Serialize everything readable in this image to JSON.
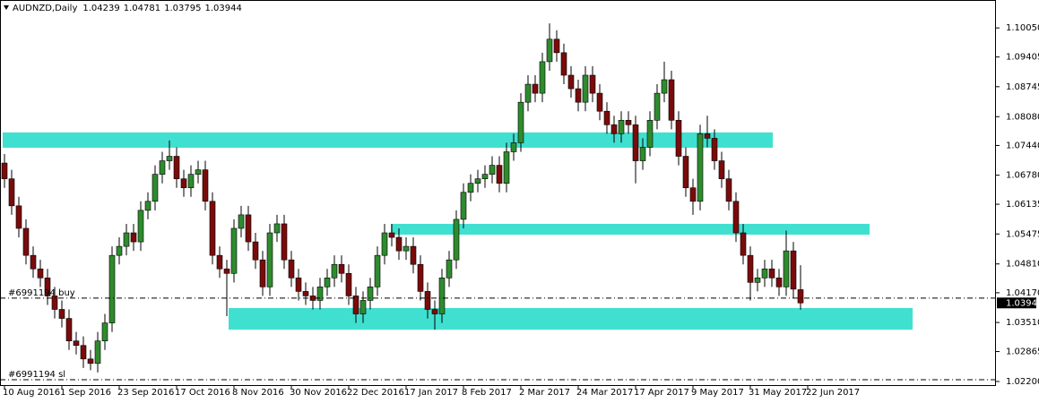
{
  "chart_data": {
    "type": "candlestick",
    "title": "AUDNZD,Daily",
    "up_color": "#2e8b2e",
    "down_color": "#7a0b0b",
    "wick_color": "#000000",
    "open": [
      1.0705,
      1.067,
      1.061,
      1.056,
      1.05,
      1.047,
      1.045,
      1.041,
      1.038,
      1.036,
      1.031,
      1.03,
      1.027,
      1.026,
      1.031,
      1.035,
      1.05,
      1.052,
      1.055,
      1.053,
      1.06,
      1.062,
      1.068,
      1.071,
      1.072,
      1.067,
      1.065,
      1.068,
      1.069,
      1.062,
      1.05,
      1.047,
      1.046,
      1.056,
      1.059,
      1.053,
      1.049,
      1.043,
      1.055,
      1.057,
      1.049,
      1.045,
      1.042,
      1.041,
      1.04,
      1.043,
      1.045,
      1.048,
      1.046,
      1.041,
      1.037,
      1.04,
      1.043,
      1.05,
      1.055,
      1.054,
      1.051,
      1.052,
      1.048,
      1.042,
      1.038,
      1.037,
      1.045,
      1.049,
      1.058,
      1.064,
      1.066,
      1.067,
      1.068,
      1.07,
      1.066,
      1.073,
      1.075,
      1.084,
      1.088,
      1.086,
      1.093,
      1.098,
      1.095,
      1.09,
      1.087,
      1.084,
      1.09,
      1.086,
      1.082,
      1.079,
      1.077,
      1.08,
      1.079,
      1.071,
      1.074,
      1.08,
      1.086,
      1.089,
      1.08,
      1.072,
      1.065,
      1.062,
      1.077,
      1.076,
      1.071,
      1.067,
      1.062,
      1.055,
      1.05,
      1.044,
      1.045,
      1.047,
      1.045,
      1.043,
      1.051,
      1.04239
    ],
    "high": [
      1.0725,
      1.069,
      1.063,
      1.058,
      1.052,
      1.049,
      1.047,
      1.043,
      1.04,
      1.038,
      1.033,
      1.032,
      1.029,
      1.033,
      1.037,
      1.052,
      1.054,
      1.057,
      1.057,
      1.062,
      1.064,
      1.07,
      1.073,
      1.0755,
      1.074,
      1.069,
      1.07,
      1.071,
      1.071,
      1.064,
      1.052,
      1.049,
      1.058,
      1.061,
      1.061,
      1.055,
      1.051,
      1.057,
      1.059,
      1.059,
      1.051,
      1.047,
      1.044,
      1.043,
      1.045,
      1.047,
      1.05,
      1.05,
      1.048,
      1.043,
      1.042,
      1.045,
      1.052,
      1.057,
      1.057,
      1.056,
      1.054,
      1.054,
      1.05,
      1.044,
      1.04,
      1.047,
      1.051,
      1.06,
      1.066,
      1.068,
      1.069,
      1.07,
      1.072,
      1.072,
      1.075,
      1.077,
      1.086,
      1.09,
      1.09,
      1.095,
      1.1015,
      1.1,
      1.097,
      1.092,
      1.089,
      1.092,
      1.092,
      1.088,
      1.084,
      1.081,
      1.082,
      1.082,
      1.081,
      1.076,
      1.082,
      1.088,
      1.093,
      1.091,
      1.082,
      1.074,
      1.067,
      1.079,
      1.081,
      1.078,
      1.073,
      1.069,
      1.064,
      1.057,
      1.052,
      1.047,
      1.049,
      1.049,
      1.047,
      1.0555,
      1.053,
      1.04781
    ],
    "low": [
      1.065,
      1.059,
      1.054,
      1.048,
      1.045,
      1.043,
      1.039,
      1.036,
      1.034,
      1.029,
      1.028,
      1.025,
      1.0245,
      1.024,
      1.029,
      1.033,
      1.048,
      1.05,
      1.051,
      1.051,
      1.058,
      1.06,
      1.066,
      1.069,
      1.065,
      1.063,
      1.063,
      1.066,
      1.06,
      1.048,
      1.045,
      1.0365,
      1.044,
      1.054,
      1.051,
      1.047,
      1.041,
      1.041,
      1.053,
      1.047,
      1.043,
      1.04,
      1.039,
      1.038,
      1.038,
      1.041,
      1.043,
      1.044,
      1.039,
      1.035,
      1.035,
      1.038,
      1.041,
      1.048,
      1.052,
      1.049,
      1.049,
      1.046,
      1.04,
      1.036,
      1.0335,
      1.035,
      1.043,
      1.047,
      1.056,
      1.062,
      1.064,
      1.065,
      1.066,
      1.064,
      1.064,
      1.071,
      1.073,
      1.082,
      1.084,
      1.084,
      1.091,
      1.093,
      1.088,
      1.085,
      1.082,
      1.082,
      1.084,
      1.08,
      1.077,
      1.075,
      1.075,
      1.077,
      1.066,
      1.069,
      1.072,
      1.078,
      1.084,
      1.078,
      1.07,
      1.063,
      1.059,
      1.06,
      1.074,
      1.069,
      1.065,
      1.06,
      1.053,
      1.048,
      1.04,
      1.042,
      1.043,
      1.043,
      1.041,
      1.041,
      1.0405,
      1.03795
    ],
    "close": [
      1.067,
      1.061,
      1.056,
      1.05,
      1.047,
      1.045,
      1.041,
      1.038,
      1.036,
      1.031,
      1.03,
      1.027,
      1.026,
      1.031,
      1.035,
      1.05,
      1.052,
      1.055,
      1.053,
      1.06,
      1.062,
      1.068,
      1.071,
      1.072,
      1.067,
      1.065,
      1.068,
      1.069,
      1.062,
      1.05,
      1.047,
      1.046,
      1.056,
      1.059,
      1.053,
      1.049,
      1.043,
      1.055,
      1.057,
      1.049,
      1.045,
      1.042,
      1.041,
      1.04,
      1.043,
      1.045,
      1.048,
      1.046,
      1.041,
      1.037,
      1.04,
      1.043,
      1.05,
      1.055,
      1.054,
      1.051,
      1.052,
      1.048,
      1.042,
      1.038,
      1.037,
      1.045,
      1.049,
      1.058,
      1.064,
      1.066,
      1.067,
      1.068,
      1.07,
      1.066,
      1.073,
      1.075,
      1.084,
      1.088,
      1.086,
      1.093,
      1.098,
      1.095,
      1.09,
      1.087,
      1.084,
      1.09,
      1.086,
      1.082,
      1.079,
      1.077,
      1.08,
      1.079,
      1.071,
      1.074,
      1.08,
      1.086,
      1.089,
      1.08,
      1.072,
      1.065,
      1.062,
      1.077,
      1.076,
      1.071,
      1.067,
      1.062,
      1.055,
      1.05,
      1.044,
      1.045,
      1.047,
      1.045,
      1.043,
      1.051,
      1.0425,
      1.03944
    ],
    "xlim": [
      -0.625,
      138.125
    ],
    "xticks": [
      {
        "value": 0,
        "label": "10 Aug 2016"
      },
      {
        "value": 8,
        "label": "1 Sep 2016"
      },
      {
        "value": 16,
        "label": "23 Sep 2016"
      },
      {
        "value": 24,
        "label": "17 Oct 2016"
      },
      {
        "value": 32,
        "label": "8 Nov 2016"
      },
      {
        "value": 40,
        "label": "30 Nov 2016"
      },
      {
        "value": 48,
        "label": "22 Dec 2016"
      },
      {
        "value": 56,
        "label": "17 Jan 2017"
      },
      {
        "value": 64,
        "label": "8 Feb 2017"
      },
      {
        "value": 72,
        "label": "2 Mar 2017"
      },
      {
        "value": 80,
        "label": "24 Mar 2017"
      },
      {
        "value": 88,
        "label": "17 Apr 2017"
      },
      {
        "value": 96,
        "label": "9 May 2017"
      },
      {
        "value": 104,
        "label": "31 May 2017"
      },
      {
        "value": 112,
        "label": "22 Jun 2017"
      }
    ],
    "ylim": [
      1.0212,
      1.1067
    ],
    "yticks": [
      {
        "value": 1.1005,
        "label": "1.10050"
      },
      1.09405,
      1.08745,
      {
        "value": 1.0808,
        "label": "1.08080"
      },
      {
        "value": 1.0744,
        "label": "1.07440"
      },
      {
        "value": 1.0678,
        "label": "1.06780"
      },
      1.06135,
      1.05475,
      {
        "value": 1.0481,
        "label": "1.04810"
      },
      {
        "value": 1.0417,
        "label": "1.04170"
      },
      {
        "value": 1.0351,
        "label": "1.03510"
      },
      1.02865,
      {
        "value": 1.022,
        "label": "1.02200"
      }
    ],
    "zones": [
      {
        "top": 1.0773,
        "bottom": 1.0739
      },
      {
        "top": 1.057,
        "bottom": 1.0546
      },
      {
        "top": 1.0383,
        "bottom": 1.0335
      }
    ],
    "zone_color": "#40e0d0",
    "orders": [
      {
        "name": "#6991194 buy",
        "price": 1.0405
      },
      {
        "name": "#6991194 sl",
        "price": 1.0224
      }
    ]
  }
}
